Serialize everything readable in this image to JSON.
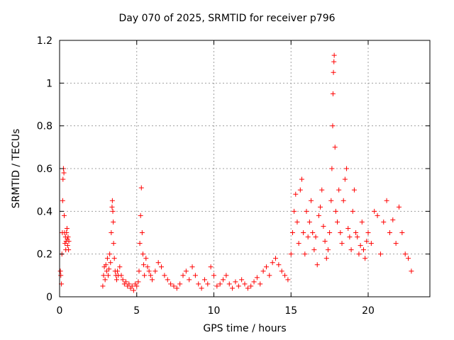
{
  "chart_data": {
    "type": "scatter",
    "title": "Day 070 of 2025, SRMTID for receiver p796",
    "xlabel": "GPS time / hours",
    "ylabel": "SRMTID / TECUs",
    "xlim": [
      0,
      24
    ],
    "ylim": [
      0,
      1.2
    ],
    "xticks": [
      0,
      5,
      10,
      15,
      20
    ],
    "xtick_labels": [
      "0",
      "5",
      "10",
      "15",
      "20"
    ],
    "yticks": [
      0,
      0.2,
      0.4,
      0.6,
      0.8,
      1,
      1.2
    ],
    "ytick_labels": [
      "0",
      "0.2",
      "0.4",
      "0.6",
      "0.8",
      "1",
      "1.2"
    ],
    "grid": true,
    "marker": "+",
    "color": "#ff0000",
    "series": [
      {
        "name": "SRMTID",
        "x": [
          0.05,
          0.08,
          0.12,
          0.15,
          0.18,
          0.2,
          0.22,
          0.25,
          0.28,
          0.3,
          0.32,
          0.35,
          0.38,
          0.4,
          0.42,
          0.45,
          0.48,
          0.5,
          0.52,
          0.55,
          0.58,
          0.6,
          2.8,
          2.85,
          2.9,
          2.95,
          3.0,
          3.05,
          3.1,
          3.15,
          3.2,
          3.25,
          3.3,
          3.35,
          3.4,
          3.42,
          3.45,
          3.48,
          3.5,
          3.55,
          3.6,
          3.65,
          3.7,
          3.75,
          3.8,
          3.9,
          4.0,
          4.1,
          4.2,
          4.3,
          4.4,
          4.5,
          4.6,
          4.7,
          4.8,
          4.9,
          5.0,
          5.1,
          5.15,
          5.2,
          5.25,
          5.3,
          5.35,
          5.4,
          5.45,
          5.5,
          5.6,
          5.7,
          5.8,
          5.9,
          6.0,
          6.2,
          6.4,
          6.6,
          6.8,
          7.0,
          7.2,
          7.4,
          7.6,
          7.8,
          8.0,
          8.2,
          8.4,
          8.6,
          8.8,
          9.0,
          9.2,
          9.4,
          9.6,
          9.8,
          10.0,
          10.2,
          10.4,
          10.6,
          10.8,
          11.0,
          11.2,
          11.4,
          11.6,
          11.8,
          12.0,
          12.2,
          12.4,
          12.6,
          12.8,
          13.0,
          13.2,
          13.4,
          13.6,
          13.8,
          14.0,
          14.2,
          14.4,
          14.6,
          14.8,
          15.0,
          15.1,
          15.2,
          15.3,
          15.4,
          15.5,
          15.6,
          15.7,
          15.8,
          15.9,
          16.0,
          16.1,
          16.2,
          16.3,
          16.4,
          16.5,
          16.6,
          16.7,
          16.8,
          16.9,
          17.0,
          17.1,
          17.2,
          17.3,
          17.4,
          17.5,
          17.6,
          17.65,
          17.7,
          17.72,
          17.75,
          17.78,
          17.8,
          17.85,
          17.9,
          18.0,
          18.1,
          18.2,
          18.3,
          18.4,
          18.5,
          18.6,
          18.7,
          18.8,
          18.9,
          19.0,
          19.1,
          19.2,
          19.3,
          19.4,
          19.5,
          19.6,
          19.7,
          19.8,
          19.9,
          20.0,
          20.2,
          20.4,
          20.6,
          20.8,
          21.0,
          21.2,
          21.4,
          21.6,
          21.8,
          22.0,
          22.2,
          22.4,
          22.6,
          22.8
        ],
        "y": [
          0.12,
          0.1,
          0.06,
          0.2,
          0.3,
          0.45,
          0.55,
          0.6,
          0.58,
          0.38,
          0.3,
          0.25,
          0.28,
          0.22,
          0.26,
          0.3,
          0.32,
          0.27,
          0.24,
          0.28,
          0.22,
          0.26,
          0.05,
          0.1,
          0.14,
          0.08,
          0.15,
          0.12,
          0.18,
          0.1,
          0.13,
          0.2,
          0.16,
          0.3,
          0.42,
          0.45,
          0.4,
          0.35,
          0.25,
          0.18,
          0.12,
          0.1,
          0.08,
          0.12,
          0.1,
          0.14,
          0.1,
          0.08,
          0.06,
          0.07,
          0.05,
          0.06,
          0.04,
          0.05,
          0.03,
          0.06,
          0.05,
          0.07,
          0.12,
          0.25,
          0.38,
          0.51,
          0.3,
          0.2,
          0.15,
          0.1,
          0.18,
          0.14,
          0.12,
          0.1,
          0.08,
          0.12,
          0.16,
          0.14,
          0.1,
          0.08,
          0.06,
          0.05,
          0.04,
          0.06,
          0.1,
          0.12,
          0.08,
          0.14,
          0.1,
          0.06,
          0.04,
          0.08,
          0.06,
          0.14,
          0.1,
          0.05,
          0.06,
          0.08,
          0.1,
          0.06,
          0.04,
          0.07,
          0.05,
          0.08,
          0.06,
          0.04,
          0.05,
          0.07,
          0.09,
          0.06,
          0.12,
          0.14,
          0.1,
          0.16,
          0.18,
          0.15,
          0.12,
          0.1,
          0.08,
          0.2,
          0.3,
          0.4,
          0.48,
          0.35,
          0.25,
          0.5,
          0.55,
          0.3,
          0.2,
          0.4,
          0.28,
          0.35,
          0.45,
          0.3,
          0.22,
          0.28,
          0.15,
          0.38,
          0.42,
          0.5,
          0.33,
          0.26,
          0.18,
          0.22,
          0.3,
          0.45,
          0.6,
          0.8,
          0.95,
          1.05,
          1.1,
          1.13,
          0.7,
          0.4,
          0.35,
          0.5,
          0.3,
          0.25,
          0.45,
          0.55,
          0.6,
          0.32,
          0.28,
          0.22,
          0.4,
          0.5,
          0.3,
          0.28,
          0.2,
          0.24,
          0.35,
          0.22,
          0.18,
          0.26,
          0.3,
          0.25,
          0.4,
          0.38,
          0.2,
          0.35,
          0.45,
          0.3,
          0.36,
          0.25,
          0.42,
          0.3,
          0.2,
          0.18,
          0.12
        ]
      }
    ]
  }
}
